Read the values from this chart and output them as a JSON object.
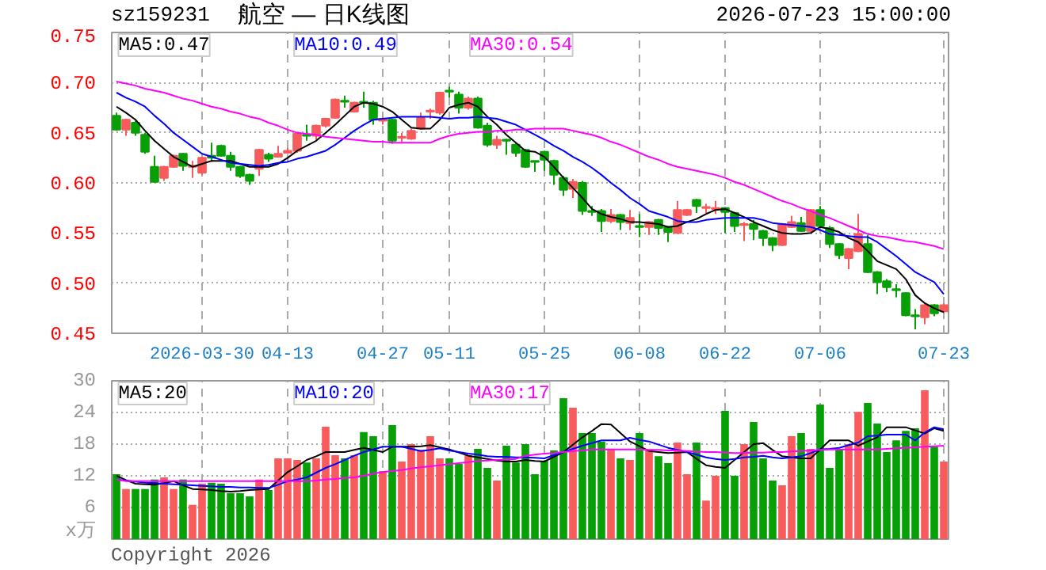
{
  "chart_data": [
    {
      "type": "candlestick",
      "title": "航空 — 日K线图",
      "subtitle": "sz159231",
      "annotations": [
        "2026-07-23 15:00:00"
      ],
      "categories": [
        null,
        null,
        null,
        null,
        null,
        null,
        null,
        null,
        null,
        "2026-03-30",
        null,
        null,
        null,
        null,
        null,
        null,
        null,
        null,
        "04-13",
        null,
        null,
        null,
        null,
        null,
        null,
        null,
        null,
        null,
        "04-27",
        null,
        null,
        null,
        null,
        null,
        null,
        "05-11",
        null,
        null,
        null,
        null,
        null,
        null,
        null,
        null,
        null,
        "05-25",
        null,
        null,
        null,
        null,
        null,
        null,
        null,
        null,
        null,
        "06-08",
        null,
        null,
        null,
        null,
        null,
        null,
        null,
        null,
        "06-22",
        null,
        null,
        null,
        null,
        null,
        null,
        null,
        null,
        null,
        "07-06",
        null,
        null,
        null,
        null,
        null,
        null,
        null,
        null,
        null,
        null,
        null,
        null,
        "07-23"
      ],
      "ohlc": [
        [
          0.667,
          0.67,
          0.652,
          0.653
        ],
        [
          0.653,
          0.664,
          0.647,
          0.663
        ],
        [
          0.66,
          0.662,
          0.647,
          0.65
        ],
        [
          0.648,
          0.65,
          0.629,
          0.631
        ],
        [
          0.616,
          0.627,
          0.6,
          0.601
        ],
        [
          0.605,
          0.617,
          0.602,
          0.616
        ],
        [
          0.616,
          0.628,
          0.615,
          0.627
        ],
        [
          0.629,
          0.63,
          0.612,
          0.617
        ],
        [
          0.616,
          0.622,
          0.605,
          0.617
        ],
        [
          0.61,
          0.626,
          0.608,
          0.625
        ],
        [
          0.627,
          0.64,
          0.621,
          0.625
        ],
        [
          0.637,
          0.638,
          0.626,
          0.627
        ],
        [
          0.627,
          0.631,
          0.612,
          0.616
        ],
        [
          0.616,
          0.617,
          0.605,
          0.607
        ],
        [
          0.608,
          0.609,
          0.598,
          0.602
        ],
        [
          0.614,
          0.634,
          0.607,
          0.633
        ],
        [
          0.628,
          0.63,
          0.621,
          0.624
        ],
        [
          0.626,
          0.637,
          0.625,
          0.629
        ],
        [
          0.63,
          0.635,
          0.629,
          0.632
        ],
        [
          0.632,
          0.65,
          0.63,
          0.649
        ],
        [
          0.648,
          0.658,
          0.642,
          0.647
        ],
        [
          0.647,
          0.658,
          0.643,
          0.657
        ],
        [
          0.657,
          0.665,
          0.655,
          0.664
        ],
        [
          0.665,
          0.684,
          0.664,
          0.683
        ],
        [
          0.682,
          0.687,
          0.675,
          0.681
        ],
        [
          0.671,
          0.681,
          0.67,
          0.68
        ],
        [
          0.681,
          0.691,
          0.675,
          0.68
        ],
        [
          0.68,
          0.682,
          0.658,
          0.663
        ],
        [
          0.662,
          0.666,
          0.658,
          0.664
        ],
        [
          0.663,
          0.664,
          0.639,
          0.642
        ],
        [
          0.645,
          0.65,
          0.641,
          0.646
        ],
        [
          0.644,
          0.654,
          0.643,
          0.652
        ],
        [
          0.654,
          0.67,
          0.653,
          0.665
        ],
        [
          0.671,
          0.674,
          0.664,
          0.672
        ],
        [
          0.67,
          0.691,
          0.668,
          0.69
        ],
        [
          0.692,
          0.696,
          0.685,
          0.691
        ],
        [
          0.688,
          0.691,
          0.669,
          0.675
        ],
        [
          0.675,
          0.686,
          0.673,
          0.684
        ],
        [
          0.684,
          0.686,
          0.654,
          0.655
        ],
        [
          0.657,
          0.66,
          0.636,
          0.638
        ],
        [
          0.638,
          0.647,
          0.634,
          0.643
        ],
        [
          0.643,
          0.644,
          0.628,
          0.642
        ],
        [
          0.638,
          0.64,
          0.626,
          0.63
        ],
        [
          0.633,
          0.634,
          0.615,
          0.616
        ],
        [
          0.622,
          0.622,
          0.611,
          0.621
        ],
        [
          0.631,
          0.632,
          0.612,
          0.623
        ],
        [
          0.622,
          0.623,
          0.598,
          0.608
        ],
        [
          0.605,
          0.607,
          0.587,
          0.593
        ],
        [
          0.594,
          0.604,
          0.585,
          0.601
        ],
        [
          0.6,
          0.602,
          0.568,
          0.572
        ],
        [
          0.572,
          0.577,
          0.567,
          0.571
        ],
        [
          0.572,
          0.574,
          0.551,
          0.562
        ],
        [
          0.562,
          0.574,
          0.56,
          0.568
        ],
        [
          0.568,
          0.569,
          0.553,
          0.561
        ],
        [
          0.56,
          0.573,
          0.553,
          0.565
        ],
        [
          0.557,
          0.569,
          0.546,
          0.556
        ],
        [
          0.556,
          0.562,
          0.548,
          0.561
        ],
        [
          0.563,
          0.564,
          0.548,
          0.555
        ],
        [
          0.556,
          0.557,
          0.541,
          0.551
        ],
        [
          0.55,
          0.582,
          0.549,
          0.573
        ],
        [
          0.568,
          0.574,
          0.567,
          0.573
        ],
        [
          0.583,
          0.584,
          0.57,
          0.577
        ],
        [
          0.575,
          0.579,
          0.57,
          0.576
        ],
        [
          0.574,
          0.582,
          0.569,
          0.575
        ],
        [
          0.575,
          0.576,
          0.55,
          0.571
        ],
        [
          0.57,
          0.571,
          0.551,
          0.557
        ],
        [
          0.558,
          0.561,
          0.542,
          0.559
        ],
        [
          0.559,
          0.563,
          0.543,
          0.554
        ],
        [
          0.552,
          0.553,
          0.537,
          0.545
        ],
        [
          0.545,
          0.546,
          0.532,
          0.538
        ],
        [
          0.538,
          0.56,
          0.537,
          0.559
        ],
        [
          0.556,
          0.567,
          0.555,
          0.561
        ],
        [
          0.56,
          0.566,
          0.551,
          0.552
        ],
        [
          0.552,
          0.574,
          0.551,
          0.573
        ],
        [
          0.573,
          0.577,
          0.555,
          0.557
        ],
        [
          0.555,
          0.557,
          0.535,
          0.539
        ],
        [
          0.539,
          0.54,
          0.524,
          0.528
        ],
        [
          0.525,
          0.535,
          0.514,
          0.534
        ],
        [
          0.532,
          0.569,
          0.531,
          0.549
        ],
        [
          0.539,
          0.548,
          0.51,
          0.511
        ],
        [
          0.511,
          0.512,
          0.489,
          0.501
        ],
        [
          0.502,
          0.504,
          0.491,
          0.496
        ],
        [
          0.494,
          0.499,
          0.486,
          0.493
        ],
        [
          0.49,
          0.491,
          0.467,
          0.468
        ],
        [
          0.468,
          0.474,
          0.454,
          0.467
        ],
        [
          0.466,
          0.479,
          0.459,
          0.478
        ],
        [
          0.478,
          0.479,
          0.467,
          0.47
        ],
        [
          0.472,
          0.48,
          0.47,
          0.478
        ]
      ],
      "colors": [
        "#06a006",
        "#f75b5b",
        "#06a006",
        "#06a006",
        "#06a006",
        "#f75b5b",
        "#f75b5b",
        "#06a006",
        "#f75b5b",
        "#f75b5b",
        "#06a006",
        "#06a006",
        "#06a006",
        "#06a006",
        "#06a006",
        "#f75b5b",
        "#06a006",
        "#f75b5b",
        "#f75b5b",
        "#f75b5b",
        "#06a006",
        "#f75b5b",
        "#f75b5b",
        "#f75b5b",
        "#06a006",
        "#f75b5b",
        "#06a006",
        "#06a006",
        "#f75b5b",
        "#06a006",
        "#f75b5b",
        "#f75b5b",
        "#f75b5b",
        "#f75b5b",
        "#f75b5b",
        "#06a006",
        "#06a006",
        "#f75b5b",
        "#06a006",
        "#06a006",
        "#f75b5b",
        "#06a006",
        "#06a006",
        "#06a006",
        "#06a006",
        "#06a006",
        "#06a006",
        "#06a006",
        "#f75b5b",
        "#06a006",
        "#06a006",
        "#06a006",
        "#f75b5b",
        "#06a006",
        "#f75b5b",
        "#06a006",
        "#f75b5b",
        "#06a006",
        "#06a006",
        "#f75b5b",
        "#f75b5b",
        "#06a006",
        "#f75b5b",
        "#f75b5b",
        "#06a006",
        "#06a006",
        "#f75b5b",
        "#06a006",
        "#06a006",
        "#06a006",
        "#f75b5b",
        "#f75b5b",
        "#06a006",
        "#f75b5b",
        "#06a006",
        "#06a006",
        "#06a006",
        "#f75b5b",
        "#f75b5b",
        "#06a006",
        "#06a006",
        "#06a006",
        "#06a006",
        "#06a006",
        "#06a006",
        "#f75b5b",
        "#06a006",
        "#f75b5b"
      ],
      "series": [
        {
          "type": "line",
          "name": "MA5:0.47",
          "color": "#000000",
          "values": [
            0.676,
            0.67,
            0.663,
            0.652,
            0.642,
            0.634,
            0.626,
            0.621,
            0.616,
            0.619,
            0.622,
            0.622,
            0.622,
            0.619,
            0.616,
            0.616,
            0.616,
            0.619,
            0.625,
            0.632,
            0.637,
            0.642,
            0.65,
            0.658,
            0.667,
            0.676,
            0.68,
            0.679,
            0.676,
            0.671,
            0.663,
            0.655,
            0.654,
            0.654,
            0.663,
            0.675,
            0.678,
            0.68,
            0.676,
            0.666,
            0.658,
            0.648,
            0.64,
            0.632,
            0.631,
            0.626,
            0.616,
            0.605,
            0.595,
            0.585,
            0.574,
            0.569,
            0.566,
            0.564,
            0.561,
            0.561,
            0.56,
            0.559,
            0.556,
            0.557,
            0.561,
            0.564,
            0.569,
            0.573,
            0.574,
            0.57,
            0.566,
            0.561,
            0.557,
            0.553,
            0.55,
            0.549,
            0.549,
            0.55,
            0.556,
            0.554,
            0.551,
            0.545,
            0.541,
            0.532,
            0.522,
            0.518,
            0.514,
            0.504,
            0.488,
            0.48,
            0.475,
            0.471
          ]
        },
        {
          "type": "line",
          "name": "MA10:0.49",
          "color": "#0000ff",
          "values": [
            0.69,
            0.685,
            0.681,
            0.676,
            0.667,
            0.659,
            0.65,
            0.643,
            0.636,
            0.629,
            0.626,
            0.623,
            0.62,
            0.619,
            0.618,
            0.617,
            0.618,
            0.62,
            0.621,
            0.624,
            0.626,
            0.629,
            0.632,
            0.638,
            0.645,
            0.652,
            0.658,
            0.663,
            0.664,
            0.665,
            0.666,
            0.666,
            0.666,
            0.666,
            0.665,
            0.664,
            0.665,
            0.665,
            0.666,
            0.665,
            0.664,
            0.661,
            0.658,
            0.653,
            0.648,
            0.643,
            0.637,
            0.632,
            0.626,
            0.621,
            0.615,
            0.608,
            0.6,
            0.593,
            0.585,
            0.579,
            0.572,
            0.569,
            0.566,
            0.562,
            0.561,
            0.561,
            0.563,
            0.564,
            0.565,
            0.565,
            0.565,
            0.565,
            0.563,
            0.56,
            0.559,
            0.558,
            0.557,
            0.556,
            0.553,
            0.549,
            0.548,
            0.547,
            0.546,
            0.546,
            0.541,
            0.534,
            0.527,
            0.519,
            0.511,
            0.506,
            0.501,
            0.489
          ]
        },
        {
          "type": "line",
          "name": "MA30:0.54",
          "color": "#ff00ff",
          "values": [
            0.701,
            0.699,
            0.697,
            0.694,
            0.692,
            0.69,
            0.687,
            0.684,
            0.682,
            0.679,
            0.676,
            0.674,
            0.671,
            0.669,
            0.666,
            0.664,
            0.66,
            0.657,
            0.653,
            0.65,
            0.649,
            0.648,
            0.646,
            0.645,
            0.644,
            0.643,
            0.642,
            0.641,
            0.641,
            0.64,
            0.64,
            0.64,
            0.64,
            0.64,
            0.644,
            0.647,
            0.649,
            0.65,
            0.651,
            0.651,
            0.652,
            0.652,
            0.653,
            0.653,
            0.654,
            0.654,
            0.654,
            0.654,
            0.652,
            0.65,
            0.648,
            0.645,
            0.641,
            0.638,
            0.634,
            0.63,
            0.626,
            0.623,
            0.619,
            0.616,
            0.614,
            0.612,
            0.61,
            0.608,
            0.605,
            0.601,
            0.598,
            0.594,
            0.59,
            0.586,
            0.582,
            0.579,
            0.575,
            0.572,
            0.568,
            0.565,
            0.561,
            0.557,
            0.553,
            0.549,
            0.547,
            0.546,
            0.544,
            0.542,
            0.541,
            0.539,
            0.537,
            0.534
          ]
        }
      ],
      "ylim": [
        0.45,
        0.75
      ],
      "yticks": [
        {
          "value": 0.45,
          "label": "0.45"
        },
        {
          "value": 0.5,
          "label": "0.50"
        },
        {
          "value": 0.55,
          "label": "0.55"
        },
        {
          "value": 0.6,
          "label": "0.60"
        },
        {
          "value": 0.65,
          "label": "0.65"
        },
        {
          "value": 0.7,
          "label": "0.70"
        },
        {
          "value": 0.75,
          "label": "0.75"
        }
      ],
      "grid": true,
      "legend": "top"
    },
    {
      "type": "bar",
      "ylabel": "x万",
      "annotations": [
        "Copyright 2026"
      ],
      "tick_labels": "y",
      "categories": [
        null,
        null,
        null,
        null,
        null,
        null,
        null,
        null,
        null,
        null,
        null,
        null,
        null,
        null,
        null,
        null,
        null,
        null,
        null,
        null,
        null,
        null,
        null,
        null,
        null,
        null,
        null,
        null,
        null,
        null,
        null,
        null,
        null,
        null,
        null,
        null,
        null,
        null,
        null,
        null,
        null,
        null,
        null,
        null,
        null,
        null,
        null,
        null,
        null,
        null,
        null,
        null,
        null,
        null,
        null,
        null,
        null,
        null,
        null,
        null,
        null,
        null,
        null,
        null,
        null,
        null,
        null,
        null,
        null,
        null,
        null,
        null,
        null,
        null,
        null,
        null,
        null,
        null,
        null,
        null,
        null,
        null,
        null,
        null,
        null,
        null,
        null,
        null
      ],
      "series": [
        {
          "type": "bar",
          "values": [
            12.3,
            9.5,
            9.5,
            9.5,
            11.3,
            11.7,
            9.5,
            11.3,
            6.5,
            10.5,
            10.7,
            10.5,
            8.7,
            8.7,
            8.1,
            11.3,
            9.3,
            15.3,
            15.3,
            15.0,
            14.5,
            15.3,
            21.3,
            15.9,
            15.3,
            15.9,
            20.3,
            19.5,
            12.9,
            21.6,
            14.7,
            18.0,
            16.9,
            19.5,
            15.3,
            15.3,
            14.3,
            15.9,
            17.1,
            13.5,
            11.1,
            17.7,
            14.5,
            18.0,
            12.3,
            14.8,
            16.8,
            26.7,
            24.9,
            20.1,
            20.1,
            18.5,
            17.0,
            15.3,
            15.0,
            20.1,
            17.0,
            15.7,
            14.4,
            18.3,
            12.3,
            18.3,
            7.3,
            12.0,
            24.3,
            12.0,
            18.0,
            22.2,
            15.3,
            11.1,
            10.2,
            19.5,
            20.1,
            17.1,
            25.5,
            13.5,
            17.1,
            18.0,
            24.1,
            25.8,
            21.9,
            16.5,
            18.7,
            20.5,
            21.0,
            28.2,
            17.5,
            14.7
          ],
          "colors": [
            "#06a006",
            "#f75b5b",
            "#06a006",
            "#06a006",
            "#06a006",
            "#f75b5b",
            "#f75b5b",
            "#06a006",
            "#f75b5b",
            "#f75b5b",
            "#06a006",
            "#06a006",
            "#06a006",
            "#06a006",
            "#06a006",
            "#f75b5b",
            "#06a006",
            "#f75b5b",
            "#f75b5b",
            "#f75b5b",
            "#06a006",
            "#f75b5b",
            "#f75b5b",
            "#f75b5b",
            "#06a006",
            "#f75b5b",
            "#06a006",
            "#06a006",
            "#f75b5b",
            "#06a006",
            "#f75b5b",
            "#f75b5b",
            "#f75b5b",
            "#f75b5b",
            "#f75b5b",
            "#06a006",
            "#06a006",
            "#f75b5b",
            "#06a006",
            "#06a006",
            "#f75b5b",
            "#06a006",
            "#06a006",
            "#06a006",
            "#06a006",
            "#06a006",
            "#06a006",
            "#06a006",
            "#f75b5b",
            "#06a006",
            "#06a006",
            "#06a006",
            "#f75b5b",
            "#06a006",
            "#f75b5b",
            "#06a006",
            "#f75b5b",
            "#06a006",
            "#06a006",
            "#f75b5b",
            "#f75b5b",
            "#06a006",
            "#f75b5b",
            "#f75b5b",
            "#06a006",
            "#06a006",
            "#f75b5b",
            "#06a006",
            "#06a006",
            "#06a006",
            "#f75b5b",
            "#f75b5b",
            "#06a006",
            "#f75b5b",
            "#06a006",
            "#06a006",
            "#06a006",
            "#f75b5b",
            "#f75b5b",
            "#06a006",
            "#06a006",
            "#06a006",
            "#06a006",
            "#06a006",
            "#06a006",
            "#f75b5b",
            "#06a006",
            "#f75b5b"
          ]
        },
        {
          "type": "line",
          "name": "MA5:20",
          "color": "#000000",
          "values": [
            12.0,
            11.2,
            10.5,
            10.4,
            10.3,
            10.6,
            11.0,
            10.2,
            9.5,
            9.4,
            9.3,
            9.1,
            9.0,
            9.1,
            9.3,
            9.4,
            9.5,
            11.1,
            12.7,
            13.8,
            15.0,
            15.7,
            16.5,
            16.5,
            16.5,
            16.9,
            17.3,
            16.9,
            16.5,
            17.5,
            17.5,
            17.5,
            17.6,
            17.8,
            17.4,
            17.0,
            16.4,
            15.8,
            15.5,
            15.2,
            14.9,
            14.7,
            14.7,
            15.0,
            14.8,
            14.7,
            15.6,
            16.5,
            17.9,
            19.3,
            20.5,
            21.8,
            21.7,
            20.1,
            18.5,
            17.6,
            16.7,
            16.5,
            16.3,
            16.4,
            16.5,
            15.2,
            14.0,
            13.7,
            13.5,
            15.0,
            16.5,
            18.0,
            18.2,
            16.9,
            15.7,
            15.5,
            15.3,
            15.3,
            17.0,
            18.7,
            18.7,
            18.7,
            17.7,
            18.5,
            19.3,
            21.2,
            21.2,
            21.2,
            20.6,
            20.0,
            21.0,
            20.5
          ]
        },
        {
          "type": "line",
          "name": "MA10:20",
          "color": "#0000ff",
          "values": [
            11.3,
            11.1,
            10.9,
            10.7,
            10.6,
            10.5,
            10.4,
            10.3,
            10.2,
            10.1,
            10.0,
            9.9,
            9.9,
            9.8,
            9.8,
            9.7,
            9.7,
            10.3,
            11.0,
            11.3,
            11.7,
            12.6,
            13.5,
            14.2,
            15.0,
            15.8,
            16.5,
            17.0,
            17.5,
            17.5,
            17.5,
            17.1,
            16.7,
            16.9,
            17.2,
            16.8,
            16.5,
            16.2,
            16.0,
            15.7,
            15.6,
            15.6,
            15.5,
            15.5,
            15.4,
            15.3,
            15.9,
            16.5,
            17.1,
            17.7,
            18.2,
            18.7,
            18.7,
            18.7,
            19.2,
            18.8,
            18.5,
            17.9,
            17.3,
            16.9,
            16.5,
            16.0,
            15.5,
            15.2,
            15.0,
            15.2,
            15.5,
            15.6,
            15.8,
            15.5,
            15.3,
            15.5,
            15.7,
            16.3,
            17.0,
            17.1,
            17.3,
            17.8,
            18.3,
            19.5,
            19.6,
            19.8,
            19.8,
            19.8,
            18.7,
            20.2,
            21.2,
            20.8
          ]
        },
        {
          "type": "line",
          "name": "MA30:17",
          "color": "#ff00ff",
          "values": [
            11.3,
            11.0,
            11.0,
            11.0,
            11.0,
            11.0,
            11.0,
            11.0,
            11.0,
            11.0,
            11.0,
            11.0,
            11.0,
            11.0,
            11.0,
            11.0,
            11.0,
            11.0,
            11.0,
            11.0,
            11.0,
            11.1,
            11.3,
            11.4,
            11.6,
            11.7,
            12.0,
            12.4,
            12.7,
            12.9,
            13.1,
            13.4,
            13.6,
            13.8,
            14.0,
            14.2,
            14.4,
            14.6,
            14.8,
            14.9,
            15.0,
            15.1,
            15.2,
            15.8,
            16.0,
            16.2,
            16.3,
            16.5,
            16.7,
            16.8,
            17.0,
            17.0,
            17.0,
            17.0,
            17.0,
            17.0,
            16.9,
            16.9,
            16.8,
            16.8,
            16.7,
            16.6,
            16.5,
            16.5,
            16.4,
            16.3,
            16.3,
            16.4,
            16.4,
            16.5,
            16.5,
            16.6,
            16.7,
            16.8,
            16.9,
            17.0,
            17.0,
            17.0,
            17.0,
            17.0,
            17.0,
            17.1,
            17.2,
            17.3,
            17.4,
            17.5,
            17.6,
            17.7
          ]
        }
      ],
      "ylim": [
        0,
        30
      ],
      "yticks": [
        6,
        12,
        18,
        24,
        30
      ],
      "grid": true,
      "legend": "top"
    }
  ]
}
